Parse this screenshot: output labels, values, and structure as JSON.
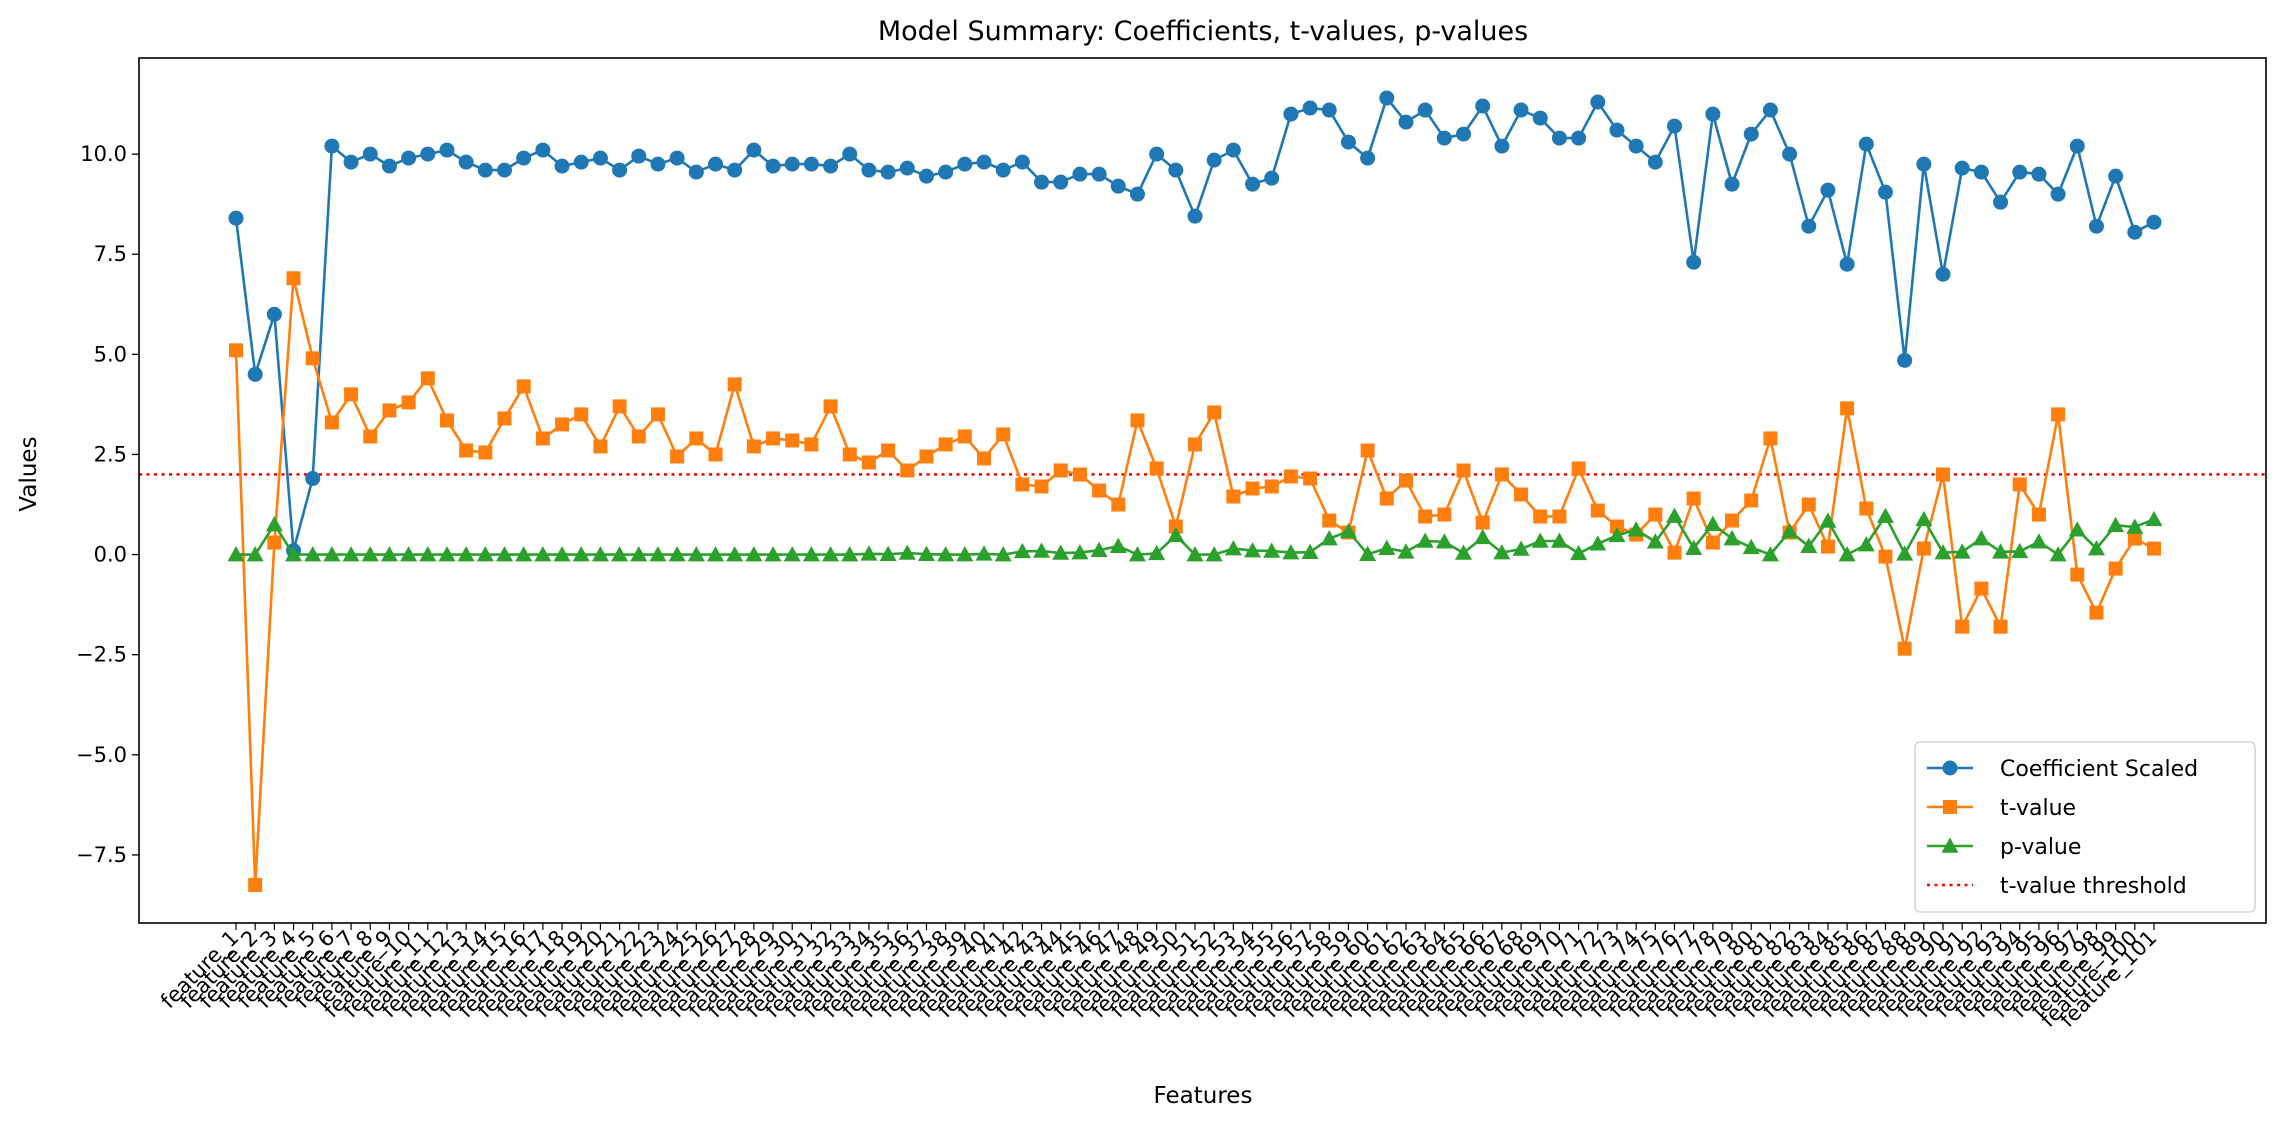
{
  "chart_data": {
    "type": "line",
    "title": "Model Summary: Coefficients, t-values, p-values",
    "xlabel": "Features",
    "ylabel": "Values",
    "ylim": [
      -9.2,
      12.4
    ],
    "yticks": [
      -7.5,
      -5.0,
      -2.5,
      0.0,
      2.5,
      5.0,
      7.5,
      10.0
    ],
    "ytick_labels": [
      "−7.5",
      "−5.0",
      "−2.5",
      "0.0",
      "2.5",
      "5.0",
      "7.5",
      "10.0"
    ],
    "legend_position": "lower-right",
    "categories": [
      "feature_1",
      "feature_2",
      "feature_3",
      "feature_4",
      "feature_5",
      "feature_6",
      "feature_7",
      "feature_8",
      "feature_9",
      "feature_10",
      "feature_11",
      "feature_12",
      "feature_13",
      "feature_14",
      "feature_15",
      "feature_16",
      "feature_17",
      "feature_18",
      "feature_19",
      "feature_20",
      "feature_21",
      "feature_22",
      "feature_23",
      "feature_24",
      "feature_25",
      "feature_26",
      "feature_27",
      "feature_28",
      "feature_29",
      "feature_30",
      "feature_31",
      "feature_32",
      "feature_33",
      "feature_34",
      "feature_35",
      "feature_36",
      "feature_37",
      "feature_38",
      "feature_39",
      "feature_40",
      "feature_41",
      "feature_42",
      "feature_43",
      "feature_44",
      "feature_45",
      "feature_46",
      "feature_47",
      "feature_48",
      "feature_49",
      "feature_50",
      "feature_51",
      "feature_52",
      "feature_53",
      "feature_54",
      "feature_55",
      "feature_56",
      "feature_57",
      "feature_58",
      "feature_59",
      "feature_60",
      "feature_61",
      "feature_62",
      "feature_63",
      "feature_64",
      "feature_65",
      "feature_66",
      "feature_67",
      "feature_68",
      "feature_69",
      "feature_70",
      "feature_71",
      "feature_72",
      "feature_73",
      "feature_74",
      "feature_75",
      "feature_76",
      "feature_77",
      "feature_78",
      "feature_79",
      "feature_80",
      "feature_81",
      "feature_82",
      "feature_83",
      "feature_84",
      "feature_85",
      "feature_86",
      "feature_87",
      "feature_88",
      "feature_89",
      "feature_90",
      "feature_91",
      "feature_92",
      "feature_93",
      "feature_94",
      "feature_95",
      "feature_96",
      "feature_97",
      "feature_98",
      "feature_99",
      "feature_100",
      "feature_101"
    ],
    "series": [
      {
        "name": "Coefficient Scaled",
        "color": "#1f77b4",
        "marker": "circle",
        "values": [
          8.4,
          4.5,
          6.0,
          0.1,
          1.9,
          10.2,
          9.8,
          10.0,
          9.7,
          9.9,
          10.0,
          10.1,
          9.8,
          9.6,
          9.6,
          9.9,
          10.1,
          9.7,
          9.8,
          9.9,
          9.6,
          9.95,
          9.75,
          9.9,
          9.55,
          9.75,
          9.6,
          10.1,
          9.7,
          9.75,
          9.75,
          9.7,
          10.0,
          9.6,
          9.55,
          9.65,
          9.45,
          9.55,
          9.75,
          9.8,
          9.6,
          9.8,
          9.3,
          9.3,
          9.5,
          9.5,
          9.2,
          9.0,
          10.0,
          9.6,
          8.45,
          9.85,
          10.1,
          9.25,
          9.4,
          11.0,
          11.15,
          11.1,
          10.3,
          9.9,
          11.4,
          10.8,
          11.1,
          10.4,
          10.5,
          11.2,
          10.2,
          11.1,
          10.9,
          10.4,
          10.4,
          11.3,
          10.6,
          10.2,
          9.8,
          10.7,
          7.3,
          11.0,
          9.25,
          10.5,
          11.1,
          10.0,
          8.2,
          9.1,
          7.25,
          10.25,
          9.05,
          4.85,
          9.75,
          7.0,
          9.65,
          9.55,
          8.8,
          9.55,
          9.5,
          9.0,
          10.2,
          8.2,
          9.45,
          8.05,
          8.3
        ]
      },
      {
        "name": "t-value",
        "color": "#ff7f0e",
        "marker": "square",
        "values": [
          5.1,
          -8.25,
          0.3,
          6.9,
          4.9,
          3.3,
          4.0,
          2.95,
          3.6,
          3.8,
          4.4,
          3.35,
          2.6,
          2.55,
          3.4,
          4.2,
          2.9,
          3.25,
          3.5,
          2.7,
          3.7,
          2.95,
          3.5,
          2.45,
          2.9,
          2.5,
          4.25,
          2.7,
          2.9,
          2.85,
          2.75,
          3.7,
          2.5,
          2.3,
          2.6,
          2.1,
          2.45,
          2.75,
          2.95,
          2.4,
          3.0,
          1.75,
          1.7,
          2.1,
          2.0,
          1.6,
          1.25,
          3.35,
          2.15,
          0.7,
          2.75,
          3.55,
          1.45,
          1.65,
          1.7,
          1.95,
          1.9,
          0.85,
          0.55,
          2.6,
          1.4,
          1.85,
          0.95,
          1.0,
          2.1,
          0.8,
          2.0,
          1.5,
          0.95,
          0.95,
          2.15,
          1.1,
          0.7,
          0.5,
          1.0,
          0.05,
          1.4,
          0.3,
          0.85,
          1.35,
          2.9,
          0.55,
          1.25,
          0.2,
          3.65,
          1.15,
          -0.05,
          -2.35,
          0.15,
          2.0,
          -1.8,
          -0.85,
          -1.8,
          1.75,
          1.0,
          3.5,
          -0.5,
          -1.45,
          -0.35,
          0.4,
          0.15
        ]
      },
      {
        "name": "p-value",
        "color": "#2ca02c",
        "marker": "triangle",
        "values": [
          0.0,
          0.0,
          0.75,
          0.0,
          0.0,
          0.0,
          0.0,
          0.0,
          0.0,
          0.0,
          0.0,
          0.0,
          0.0,
          0.0,
          0.0,
          0.0,
          0.0,
          0.0,
          0.0,
          0.0,
          0.0,
          0.0,
          0.0,
          0.0,
          0.0,
          0.0,
          0.0,
          0.0,
          0.0,
          0.0,
          0.0,
          0.0,
          0.0,
          0.02,
          0.01,
          0.04,
          0.01,
          0.0,
          0.0,
          0.02,
          0.0,
          0.08,
          0.09,
          0.04,
          0.05,
          0.11,
          0.21,
          0.0,
          0.03,
          0.48,
          0.0,
          0.0,
          0.15,
          0.1,
          0.09,
          0.05,
          0.06,
          0.4,
          0.58,
          0.01,
          0.16,
          0.07,
          0.34,
          0.32,
          0.04,
          0.43,
          0.05,
          0.14,
          0.34,
          0.34,
          0.03,
          0.27,
          0.48,
          0.62,
          0.32,
          0.96,
          0.16,
          0.76,
          0.4,
          0.18,
          0.0,
          0.58,
          0.21,
          0.84,
          0.0,
          0.25,
          0.96,
          0.02,
          0.88,
          0.05,
          0.07,
          0.4,
          0.07,
          0.08,
          0.32,
          0.0,
          0.62,
          0.15,
          0.73,
          0.69,
          0.88
        ]
      }
    ],
    "reference_lines": [
      {
        "name": "t-value threshold",
        "color": "#ff0000",
        "style": "dotted",
        "y": 2.0
      }
    ]
  }
}
